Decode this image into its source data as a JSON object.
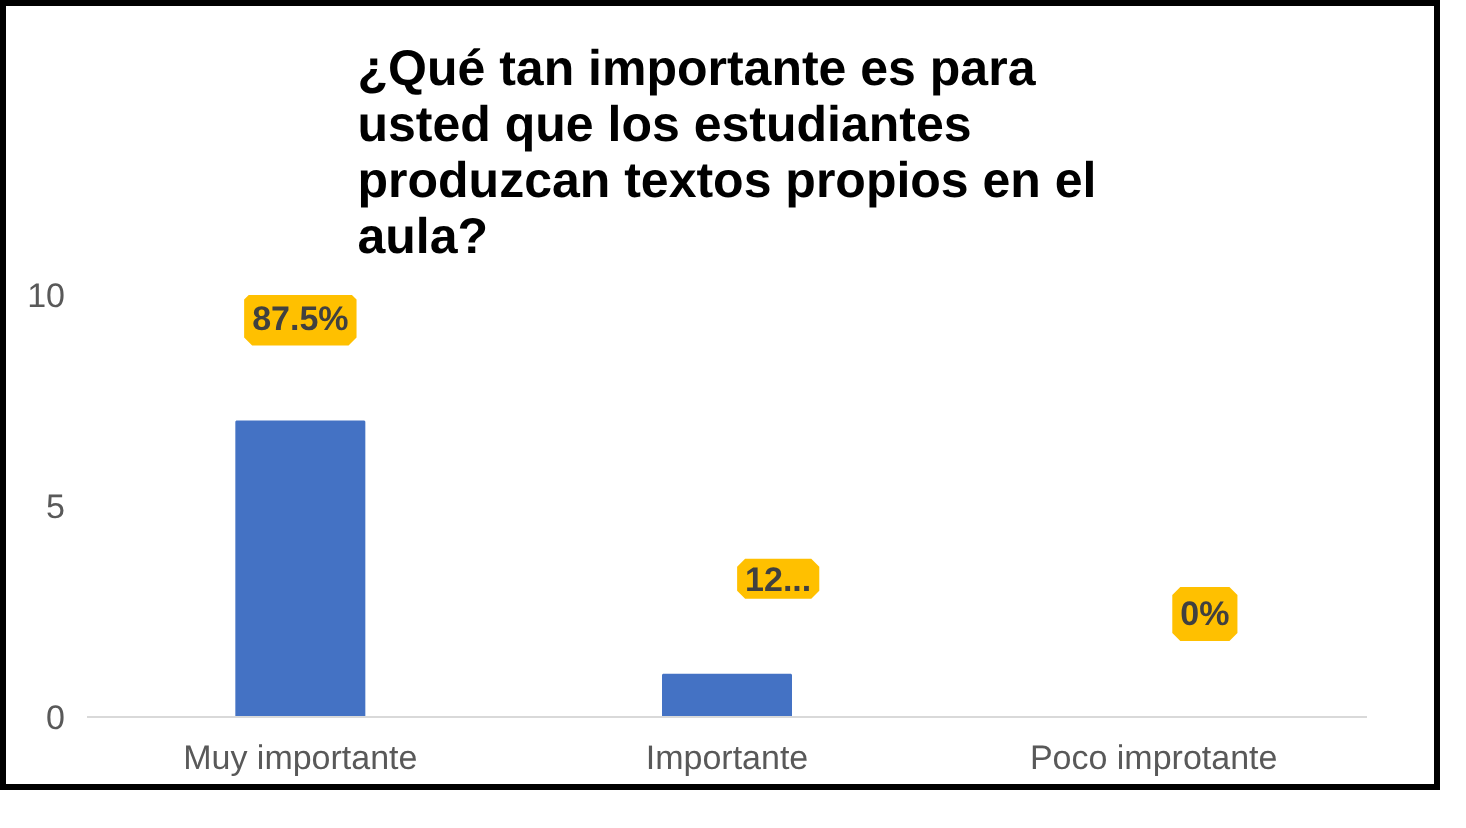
{
  "chart_data": {
    "type": "bar",
    "title": "¿Qué tan importante es para usted que los estudiantes produzcan textos propios en el aula?",
    "categories": [
      "Muy importante",
      "Importante",
      "Poco improtante"
    ],
    "values": [
      7,
      1,
      0
    ],
    "annotations": [
      {
        "text": "87.5%",
        "x": "Muy importante",
        "y": 7
      },
      {
        "text": "12...",
        "x": "Importante",
        "y": 1
      },
      {
        "text": "0%",
        "x": "Poco improtante",
        "y": 0
      }
    ],
    "color": "#4472c4",
    "ylim": [
      0,
      10
    ],
    "yticks": [
      0,
      5,
      10
    ],
    "grid": false
  }
}
